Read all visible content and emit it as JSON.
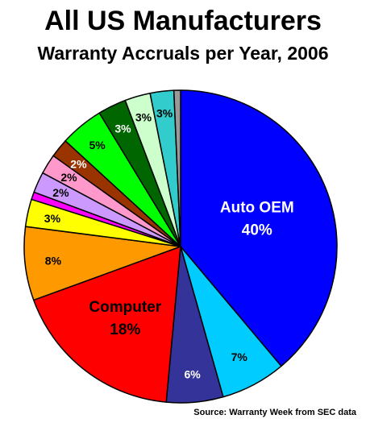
{
  "chart_data": {
    "type": "pie",
    "title": "All US Manufacturers",
    "subtitle": "Warranty Accruals per Year, 2006",
    "source": "Source: Warranty Week from SEC data",
    "start_angle_deg": 0,
    "direction": "clockwise",
    "slices": [
      {
        "label": "Auto OEM",
        "value_label": "40%",
        "value": 39.8,
        "color": "#0000ff",
        "text_color": "#ffffff"
      },
      {
        "label": "",
        "value_label": "7%",
        "value": 6.9,
        "color": "#00ccff",
        "text_color": "#000000"
      },
      {
        "label": "",
        "value_label": "6%",
        "value": 6.0,
        "color": "#333399",
        "text_color": "#ffffff"
      },
      {
        "label": "Computer",
        "value_label": "18%",
        "value": 18.4,
        "color": "#ff0000",
        "text_color": "#000000"
      },
      {
        "label": "",
        "value_label": "8%",
        "value": 7.8,
        "color": "#ff9900",
        "text_color": "#000000"
      },
      {
        "label": "",
        "value_label": "3%",
        "value": 2.9,
        "color": "#ffff00",
        "text_color": "#000000"
      },
      {
        "label": "",
        "value_label": "",
        "value": 0.8,
        "color": "#ff00ff",
        "text_color": "#000000"
      },
      {
        "label": "",
        "value_label": "2%",
        "value": 2.2,
        "color": "#cc99ff",
        "text_color": "#000000"
      },
      {
        "label": "",
        "value_label": "2%",
        "value": 2.1,
        "color": "#ff99cc",
        "text_color": "#000000"
      },
      {
        "label": "",
        "value_label": "2%",
        "value": 2.0,
        "color": "#993300",
        "text_color": "#ffffff"
      },
      {
        "label": "",
        "value_label": "5%",
        "value": 4.6,
        "color": "#00ff00",
        "text_color": "#000000"
      },
      {
        "label": "",
        "value_label": "3%",
        "value": 3.0,
        "color": "#006600",
        "text_color": "#ffffff"
      },
      {
        "label": "",
        "value_label": "3%",
        "value": 2.7,
        "color": "#ccffcc",
        "text_color": "#000000"
      },
      {
        "label": "",
        "value_label": "3%",
        "value": 2.5,
        "color": "#33cccc",
        "text_color": "#000000"
      },
      {
        "label": "",
        "value_label": "",
        "value": 0.7,
        "color": "#999999",
        "text_color": "#000000"
      }
    ]
  }
}
